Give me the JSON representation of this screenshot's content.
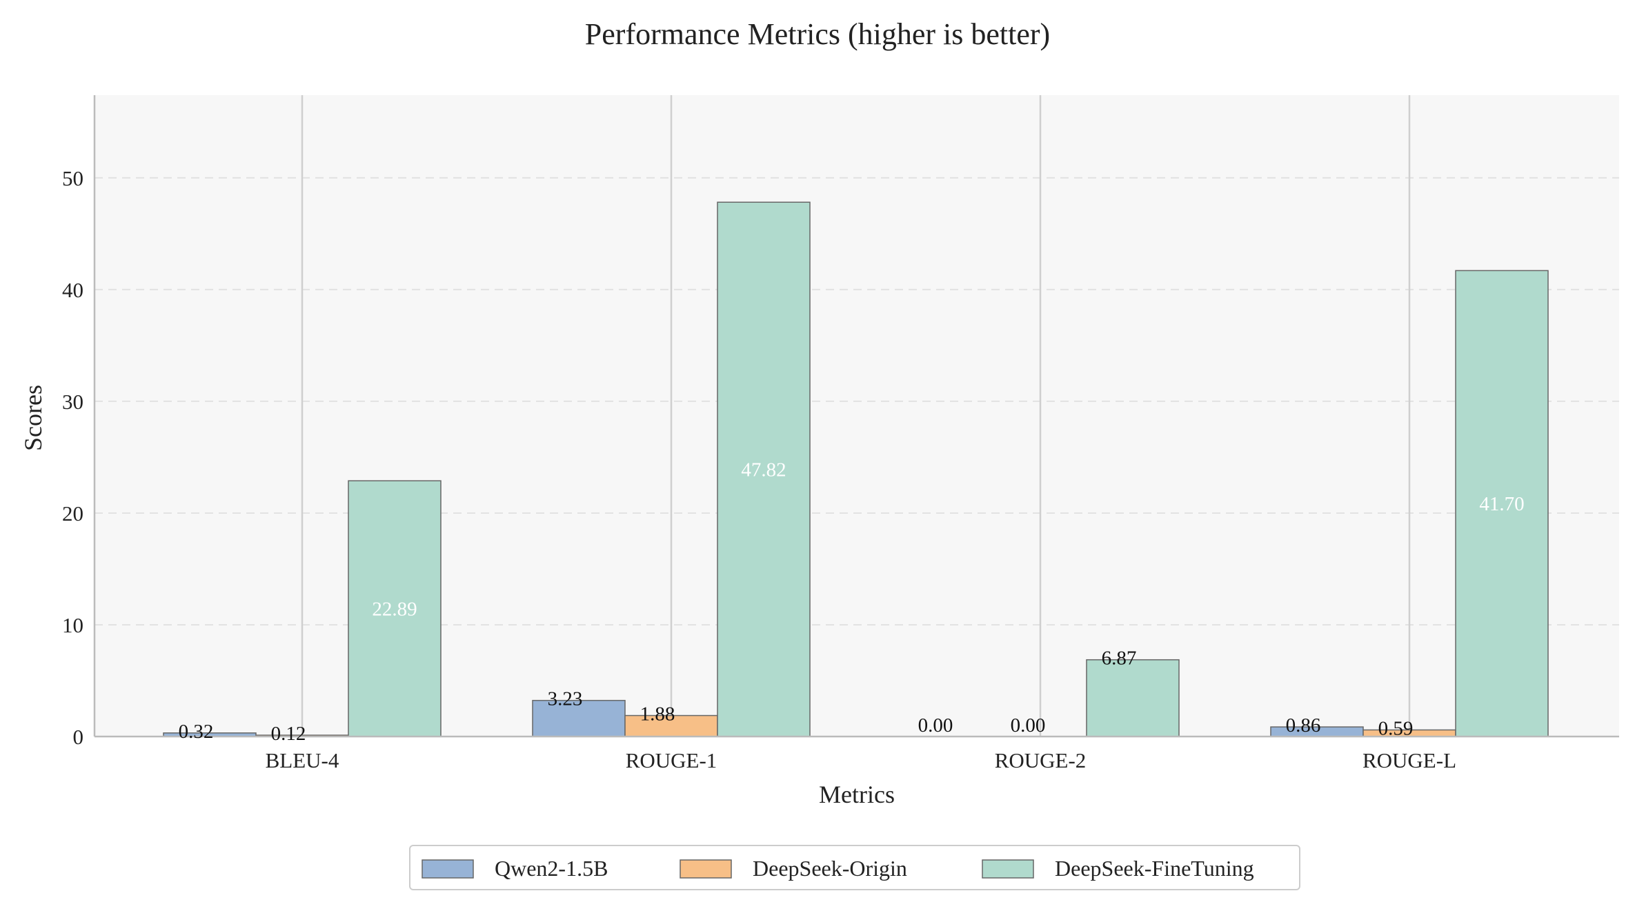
{
  "chart_data": {
    "type": "bar",
    "title": "Performance Metrics (higher is better)",
    "xlabel": "Metrics",
    "ylabel": "Scores",
    "categories": [
      "BLEU-4",
      "ROUGE-1",
      "ROUGE-2",
      "ROUGE-L"
    ],
    "series": [
      {
        "name": "Qwen2-1.5B",
        "values": [
          0.32,
          3.23,
          0.0,
          0.86
        ],
        "labels": [
          "0.32",
          "3.23",
          "0.00",
          "0.86"
        ],
        "color": "#97b3d6"
      },
      {
        "name": "DeepSeek-Origin",
        "values": [
          0.12,
          1.88,
          0.0,
          0.59
        ],
        "labels": [
          "0.12",
          "1.88",
          "0.00",
          "0.59"
        ],
        "color": "#f7bf87"
      },
      {
        "name": "DeepSeek-FineTuning",
        "values": [
          22.89,
          47.82,
          6.87,
          41.7
        ],
        "labels": [
          "22.89",
          "47.82",
          "6.87",
          "41.70"
        ],
        "color": "#b0dacd"
      }
    ],
    "yticks": [
      0,
      10,
      20,
      30,
      40,
      50
    ],
    "ylim": [
      0,
      57.4
    ],
    "grid": "y-dashed, x-solid at categories",
    "legend": "bottom-center",
    "plot_background": "#f7f7f7"
  }
}
